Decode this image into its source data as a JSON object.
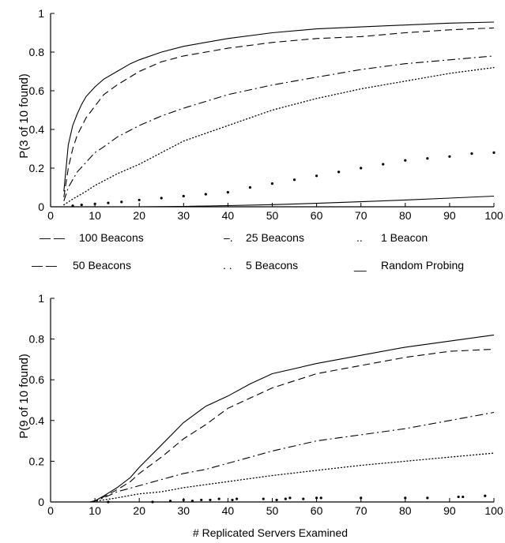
{
  "legend": {
    "placement": "between-panels",
    "entries": [
      {
        "key": "100",
        "marker": "— —",
        "label": "100 Beacons"
      },
      {
        "key": "25",
        "marker": "–.",
        "label": "25 Beacons"
      },
      {
        "key": "1",
        "marker": "..",
        "label": "1 Beacon"
      },
      {
        "key": "50",
        "marker": "— —",
        "label": "50 Beacons"
      },
      {
        "key": "5",
        "marker": ". .",
        "label": "5 Beacons"
      },
      {
        "key": "rand",
        "marker": "__",
        "label": "Random Probing"
      }
    ]
  },
  "chart_data": [
    {
      "type": "line",
      "title": "",
      "xlabel": "",
      "ylabel": "P(3 of 10 found)",
      "xlim": [
        0,
        100
      ],
      "ylim": [
        0,
        1
      ],
      "xticks": [
        "0",
        "10",
        "20",
        "30",
        "40",
        "50",
        "60",
        "70",
        "80",
        "90",
        "100"
      ],
      "yticks": [
        "0",
        "0.2",
        "0.4",
        "0.6",
        "0.8",
        "1"
      ],
      "grid": false,
      "series": [
        {
          "key": "100",
          "style": "solid",
          "x": [
            3,
            4,
            5,
            6,
            7,
            8,
            10,
            12,
            15,
            18,
            20,
            25,
            30,
            40,
            50,
            60,
            70,
            80,
            90,
            100
          ],
          "y": [
            0.08,
            0.32,
            0.42,
            0.48,
            0.53,
            0.57,
            0.62,
            0.66,
            0.7,
            0.74,
            0.76,
            0.8,
            0.83,
            0.87,
            0.9,
            0.92,
            0.93,
            0.94,
            0.95,
            0.955
          ]
        },
        {
          "key": "50",
          "style": "dashed",
          "x": [
            3,
            4,
            5,
            6,
            8,
            10,
            12,
            15,
            20,
            25,
            30,
            40,
            50,
            60,
            70,
            80,
            90,
            100
          ],
          "y": [
            0.05,
            0.2,
            0.3,
            0.37,
            0.46,
            0.52,
            0.58,
            0.63,
            0.7,
            0.75,
            0.78,
            0.82,
            0.85,
            0.87,
            0.88,
            0.9,
            0.915,
            0.925
          ]
        },
        {
          "key": "25",
          "style": "dashdot",
          "x": [
            3,
            4,
            5,
            6,
            8,
            10,
            12,
            15,
            20,
            25,
            30,
            40,
            50,
            60,
            70,
            80,
            90,
            100
          ],
          "y": [
            0.03,
            0.1,
            0.14,
            0.18,
            0.23,
            0.28,
            0.31,
            0.36,
            0.42,
            0.47,
            0.51,
            0.58,
            0.63,
            0.67,
            0.71,
            0.74,
            0.76,
            0.78
          ]
        },
        {
          "key": "5",
          "style": "dotted",
          "x": [
            3,
            5,
            8,
            10,
            15,
            20,
            25,
            30,
            40,
            50,
            60,
            70,
            80,
            90,
            100
          ],
          "y": [
            0.01,
            0.04,
            0.08,
            0.11,
            0.17,
            0.22,
            0.28,
            0.34,
            0.42,
            0.5,
            0.56,
            0.61,
            0.65,
            0.69,
            0.72
          ]
        },
        {
          "key": "1",
          "style": "sparse-dots",
          "x": [
            5,
            7,
            10,
            13,
            16,
            20,
            25,
            30,
            35,
            40,
            45,
            50,
            55,
            60,
            65,
            70,
            75,
            80,
            85,
            90,
            95,
            100
          ],
          "y": [
            0.005,
            0.01,
            0.015,
            0.02,
            0.025,
            0.035,
            0.045,
            0.055,
            0.065,
            0.075,
            0.1,
            0.12,
            0.14,
            0.16,
            0.18,
            0.2,
            0.22,
            0.24,
            0.25,
            0.26,
            0.275,
            0.28
          ]
        },
        {
          "key": "rand",
          "style": "solid",
          "x": [
            3,
            20,
            30,
            40,
            50,
            60,
            70,
            80,
            90,
            100
          ],
          "y": [
            0,
            0,
            0.002,
            0.006,
            0.011,
            0.018,
            0.026,
            0.035,
            0.045,
            0.055
          ]
        }
      ]
    },
    {
      "type": "line",
      "title": "",
      "xlabel": "# Replicated Servers Examined",
      "ylabel": "P(9 of 10 found)",
      "xlim": [
        0,
        100
      ],
      "ylim": [
        0,
        1
      ],
      "xticks": [
        "0",
        "10",
        "20",
        "30",
        "40",
        "50",
        "60",
        "70",
        "80",
        "90",
        "100"
      ],
      "yticks": [
        "0",
        "0.2",
        "0.4",
        "0.6",
        "0.8",
        "1"
      ],
      "grid": false,
      "series": [
        {
          "key": "100",
          "style": "solid",
          "x": [
            9,
            10,
            12,
            15,
            18,
            20,
            25,
            30,
            35,
            40,
            45,
            50,
            60,
            70,
            80,
            90,
            100
          ],
          "y": [
            0,
            0.005,
            0.03,
            0.07,
            0.12,
            0.17,
            0.28,
            0.39,
            0.47,
            0.52,
            0.58,
            0.63,
            0.68,
            0.72,
            0.76,
            0.79,
            0.82
          ]
        },
        {
          "key": "50",
          "style": "dashed",
          "x": [
            9,
            10,
            12,
            15,
            18,
            20,
            25,
            30,
            35,
            40,
            45,
            50,
            60,
            70,
            80,
            90,
            100
          ],
          "y": [
            0,
            0.005,
            0.025,
            0.06,
            0.1,
            0.14,
            0.22,
            0.31,
            0.38,
            0.46,
            0.51,
            0.56,
            0.63,
            0.67,
            0.71,
            0.74,
            0.75
          ]
        },
        {
          "key": "25",
          "style": "dashdot",
          "x": [
            9,
            12,
            15,
            20,
            25,
            30,
            35,
            40,
            50,
            60,
            70,
            80,
            90,
            100
          ],
          "y": [
            0,
            0.02,
            0.05,
            0.08,
            0.11,
            0.14,
            0.16,
            0.19,
            0.25,
            0.3,
            0.33,
            0.36,
            0.4,
            0.44
          ]
        },
        {
          "key": "5",
          "style": "dotted",
          "x": [
            9,
            12,
            15,
            20,
            25,
            30,
            40,
            50,
            60,
            70,
            80,
            90,
            100
          ],
          "y": [
            0,
            0.01,
            0.02,
            0.04,
            0.05,
            0.07,
            0.1,
            0.13,
            0.155,
            0.18,
            0.2,
            0.22,
            0.24
          ]
        },
        {
          "key": "1",
          "style": "sparse-dots",
          "x": [
            13,
            23,
            27,
            30,
            32,
            34,
            36,
            38,
            41,
            42,
            48,
            51,
            53,
            54,
            57,
            60,
            61,
            70,
            80,
            85,
            92,
            93,
            98
          ],
          "y": [
            0,
            0,
            0.005,
            0.01,
            0.005,
            0.01,
            0.01,
            0.015,
            0.01,
            0.015,
            0.015,
            0.01,
            0.015,
            0.02,
            0.015,
            0.02,
            0.02,
            0.02,
            0.02,
            0.02,
            0.025,
            0.025,
            0.03
          ]
        },
        {
          "key": "rand",
          "style": "solid",
          "x": [
            9,
            100
          ],
          "y": [
            0,
            0
          ]
        }
      ]
    }
  ]
}
